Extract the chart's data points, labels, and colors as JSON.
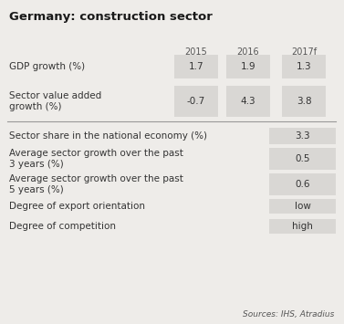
{
  "title": "Germany: construction sector",
  "bg_color": "#eeece9",
  "cell_bg": "#d9d7d4",
  "header_years": [
    "2015",
    "2016",
    "2017f"
  ],
  "top_rows": [
    {
      "label": "GDP growth (%)",
      "values": [
        "1.7",
        "1.9",
        "1.3"
      ]
    },
    {
      "label": "Sector value added\ngrowth (%)",
      "values": [
        "-0.7",
        "4.3",
        "3.8"
      ]
    }
  ],
  "bottom_rows": [
    {
      "label": "Sector share in the national economy (%)",
      "value": "3.3"
    },
    {
      "label": "Average sector growth over the past\n3 years (%)",
      "value": "0.5"
    },
    {
      "label": "Average sector growth over the past\n5 years (%)",
      "value": "0.6"
    },
    {
      "label": "Degree of export orientation",
      "value": "low"
    },
    {
      "label": "Degree of competition",
      "value": "high"
    }
  ],
  "source_text": "Sources: IHS, Atradius",
  "title_fontsize": 9.5,
  "body_fontsize": 7.5,
  "header_fontsize": 7,
  "small_fontsize": 6.5
}
